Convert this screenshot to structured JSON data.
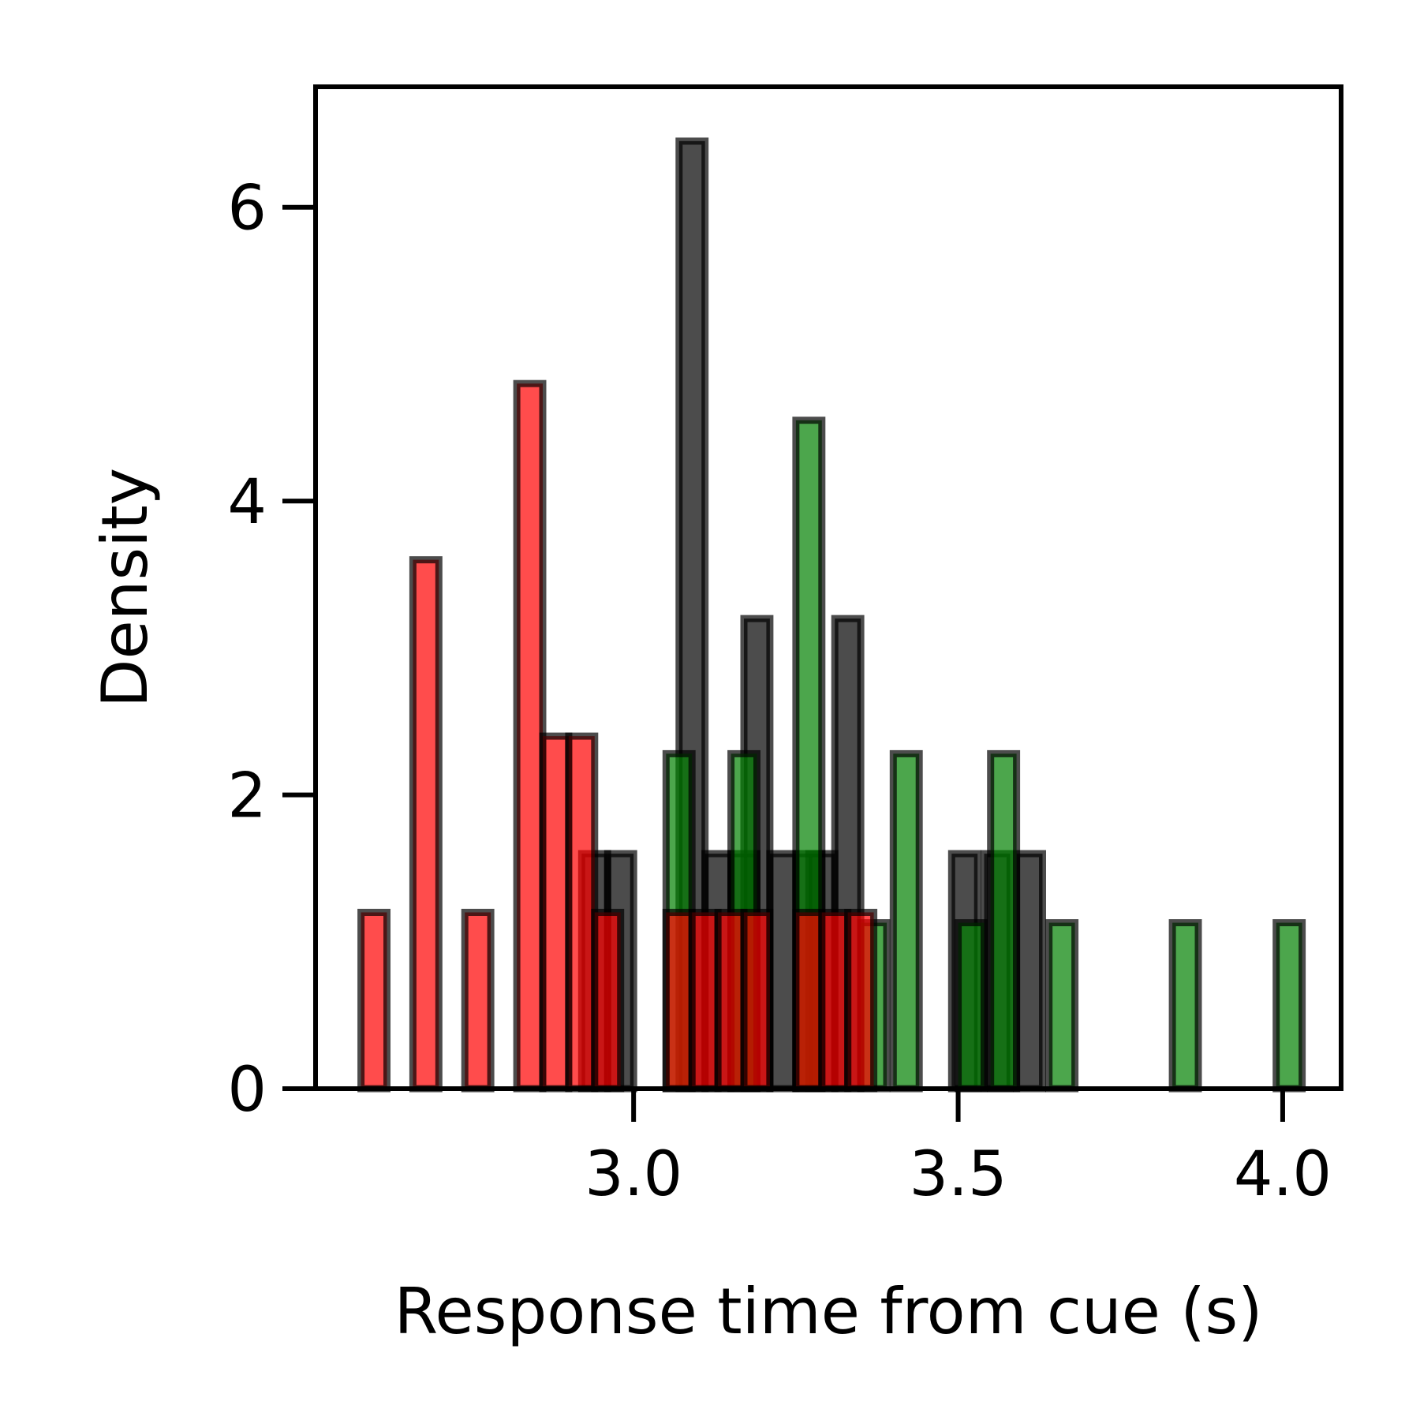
{
  "chart_data": {
    "type": "bar",
    "title": "",
    "xlabel": "Response time from cue (s)",
    "ylabel": "Density",
    "xlim": [
      2.51,
      4.09
    ],
    "ylim": [
      0,
      6.82
    ],
    "xticks": [
      3.0,
      3.5,
      4.0
    ],
    "xtick_labels": [
      "3.0",
      "3.5",
      "4.0"
    ],
    "yticks": [
      0,
      2,
      4,
      6
    ],
    "ytick_labels": [
      "0",
      "2",
      "4",
      "6"
    ],
    "grid": false,
    "legend": null,
    "bin_width": 0.04,
    "series": [
      {
        "color": "#000000",
        "opacity": 0.7,
        "bins": [
          {
            "x": 2.94,
            "y": 1.6
          },
          {
            "x": 2.98,
            "y": 1.6
          },
          {
            "x": 3.09,
            "y": 6.45
          },
          {
            "x": 3.13,
            "y": 1.6
          },
          {
            "x": 3.17,
            "y": 1.6
          },
          {
            "x": 3.19,
            "y": 3.2
          },
          {
            "x": 3.23,
            "y": 1.6
          },
          {
            "x": 3.27,
            "y": 1.6
          },
          {
            "x": 3.29,
            "y": 1.6
          },
          {
            "x": 3.33,
            "y": 3.2
          },
          {
            "x": 3.51,
            "y": 1.6
          },
          {
            "x": 3.56,
            "y": 1.6
          },
          {
            "x": 3.61,
            "y": 1.6
          }
        ]
      },
      {
        "color": "#008000",
        "opacity": 0.7,
        "bins": [
          {
            "x": 3.07,
            "y": 2.28
          },
          {
            "x": 3.17,
            "y": 2.28
          },
          {
            "x": 3.27,
            "y": 4.55
          },
          {
            "x": 3.37,
            "y": 1.13
          },
          {
            "x": 3.42,
            "y": 2.28
          },
          {
            "x": 3.52,
            "y": 1.13
          },
          {
            "x": 3.57,
            "y": 2.28
          },
          {
            "x": 3.66,
            "y": 1.13
          },
          {
            "x": 3.85,
            "y": 1.13
          },
          {
            "x": 4.01,
            "y": 1.13
          }
        ]
      },
      {
        "color": "#ff0000",
        "opacity": 0.7,
        "bins": [
          {
            "x": 2.6,
            "y": 1.2
          },
          {
            "x": 2.68,
            "y": 3.6
          },
          {
            "x": 2.76,
            "y": 1.2
          },
          {
            "x": 2.84,
            "y": 4.8
          },
          {
            "x": 2.88,
            "y": 2.4
          },
          {
            "x": 2.92,
            "y": 2.4
          },
          {
            "x": 2.96,
            "y": 1.2
          },
          {
            "x": 3.07,
            "y": 1.2
          },
          {
            "x": 3.11,
            "y": 1.2
          },
          {
            "x": 3.15,
            "y": 1.2
          },
          {
            "x": 3.19,
            "y": 1.2
          },
          {
            "x": 3.27,
            "y": 1.2
          },
          {
            "x": 3.31,
            "y": 1.2
          },
          {
            "x": 3.35,
            "y": 1.2
          }
        ]
      }
    ]
  }
}
